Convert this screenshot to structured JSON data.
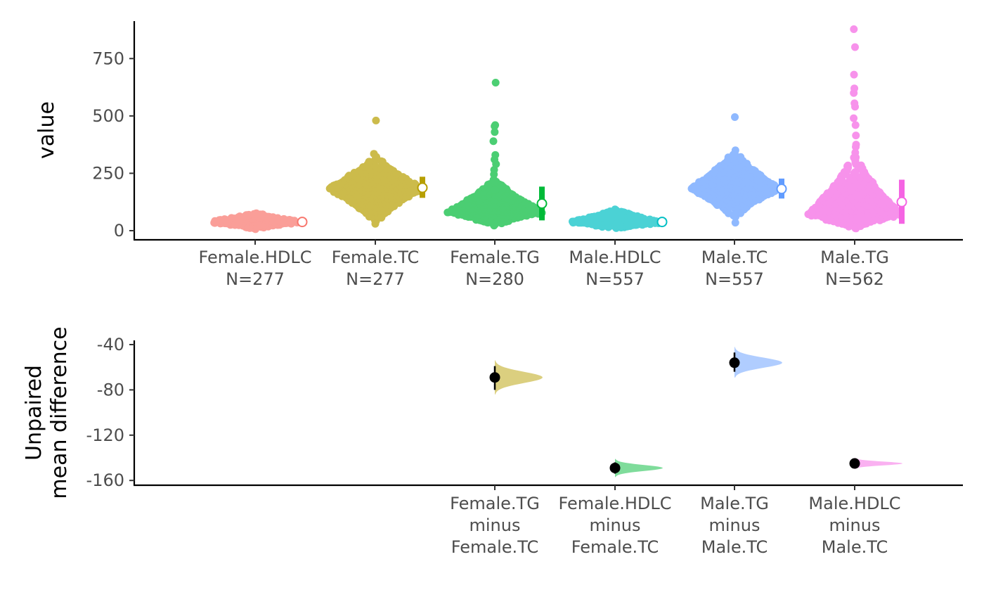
{
  "chart_data": [
    {
      "type": "scatter",
      "subtype": "swarm",
      "ylabel": "value",
      "ylim": [
        -40,
        920
      ],
      "yticks": [
        0,
        250,
        500,
        750
      ],
      "grid": false,
      "legend": "none",
      "groups": [
        {
          "name": "Female.HDLC",
          "n_label": "N=277",
          "color": "#F8766D",
          "mean": 38,
          "sd_low": 29,
          "sd_high": 47,
          "body_min": 10,
          "body_max": 75,
          "body_mode": 38,
          "body_halfwidth": 55,
          "outliers": []
        },
        {
          "name": "Female.TC",
          "n_label": "N=277",
          "color": "#B79F00",
          "mean": 187,
          "sd_low": 143,
          "sd_high": 235,
          "body_min": 40,
          "body_max": 320,
          "body_mode": 185,
          "body_halfwidth": 62,
          "outliers": [
            30,
            335,
            480
          ]
        },
        {
          "name": "Female.TG",
          "n_label": "N=280",
          "color": "#00BA38",
          "mean": 118,
          "sd_low": 45,
          "sd_high": 192,
          "body_min": 25,
          "body_max": 220,
          "body_mode": 80,
          "body_halfwidth": 62,
          "outliers": [
            245,
            265,
            290,
            310,
            330,
            390,
            430,
            455,
            460,
            645
          ]
        },
        {
          "name": "Male.HDLC",
          "n_label": "N=557",
          "color": "#00BFC4",
          "mean": 38,
          "sd_low": 28,
          "sd_high": 48,
          "body_min": 12,
          "body_max": 90,
          "body_mode": 36,
          "body_halfwidth": 58,
          "outliers": []
        },
        {
          "name": "Male.TC",
          "n_label": "N=557",
          "color": "#619CFF",
          "mean": 182,
          "sd_low": 140,
          "sd_high": 227,
          "body_min": 60,
          "body_max": 340,
          "body_mode": 183,
          "body_halfwidth": 58,
          "outliers": [
            35,
            350,
            495
          ]
        },
        {
          "name": "Male.TG",
          "n_label": "N=562",
          "color": "#F564E3",
          "mean": 125,
          "sd_low": 30,
          "sd_high": 222,
          "body_min": 10,
          "body_max": 320,
          "body_mode": 70,
          "body_halfwidth": 62,
          "outliers": [
            340,
            365,
            375,
            415,
            460,
            490,
            540,
            555,
            600,
            620,
            680,
            800,
            878
          ]
        }
      ]
    },
    {
      "type": "scatter",
      "subtype": "estimation",
      "ylabel": "Unpaired\nmean difference",
      "ylim": [
        -165,
        -35
      ],
      "yticks": [
        -40,
        -80,
        -120,
        -160
      ],
      "grid": false,
      "legend": "none",
      "comparisons": [
        {
          "label_lines": [
            "Female.TG",
            "minus",
            "Female.TC"
          ],
          "position": 3,
          "color": "#B79F00",
          "estimate": -69,
          "ci_low": -80,
          "ci_high": -59,
          "dist_low": -84,
          "dist_high": -54
        },
        {
          "label_lines": [
            "Female.HDLC",
            "minus",
            "Female.TC"
          ],
          "position": 4,
          "color": "#00BA38",
          "estimate": -149,
          "ci_low": -154,
          "ci_high": -144,
          "dist_low": -157,
          "dist_high": -141
        },
        {
          "label_lines": [
            "Male.TG",
            "minus",
            "Male.TC"
          ],
          "position": 6,
          "color": "#619CFF",
          "estimate": -56,
          "ci_low": -64,
          "ci_high": -47,
          "dist_low": -69,
          "dist_high": -42
        },
        {
          "label_lines": [
            "Male.HDLC",
            "minus",
            "Male.TC"
          ],
          "position": 7,
          "color": "#F564E3",
          "estimate": -145,
          "ci_low": -148,
          "ci_high": -142,
          "dist_low": -150,
          "dist_high": -140
        }
      ]
    }
  ]
}
